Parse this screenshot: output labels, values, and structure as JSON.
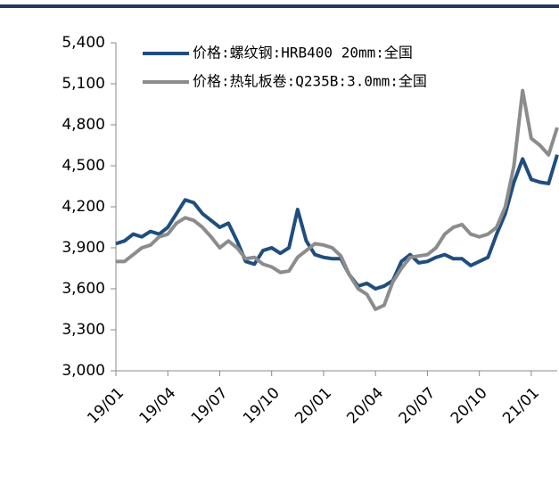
{
  "chart_data": {
    "type": "line",
    "categories": [
      "19/01",
      null,
      null,
      null,
      null,
      null,
      "19/04",
      null,
      null,
      null,
      null,
      null,
      "19/07",
      null,
      null,
      null,
      null,
      null,
      "19/10",
      null,
      null,
      null,
      null,
      null,
      "20/01",
      null,
      null,
      null,
      null,
      null,
      "20/04",
      null,
      null,
      null,
      null,
      null,
      "20/07",
      null,
      null,
      null,
      null,
      null,
      "20/10",
      null,
      null,
      null,
      null,
      null,
      "21/01",
      null,
      null,
      null
    ],
    "series": [
      {
        "name": "价格:螺纹钢:HRB400 20mm:全国",
        "color": "#1f4e7e",
        "values": [
          3930,
          3950,
          4000,
          3980,
          4020,
          4000,
          4050,
          4150,
          4250,
          4230,
          4150,
          4100,
          4050,
          4080,
          3950,
          3800,
          3780,
          3880,
          3900,
          3860,
          3900,
          4180,
          3950,
          3850,
          3830,
          3820,
          3820,
          3700,
          3620,
          3640,
          3600,
          3620,
          3660,
          3800,
          3850,
          3790,
          3800,
          3830,
          3850,
          3820,
          3820,
          3770,
          3800,
          3830,
          4000,
          4150,
          4380,
          4550,
          4400,
          4380,
          4370,
          4580
        ]
      },
      {
        "name": "价格:热轧板卷:Q235B:3.0mm:全国",
        "color": "#8c8c8c",
        "values": [
          3800,
          3800,
          3850,
          3900,
          3920,
          3980,
          4000,
          4080,
          4120,
          4100,
          4050,
          3980,
          3900,
          3950,
          3900,
          3820,
          3830,
          3780,
          3760,
          3720,
          3730,
          3830,
          3880,
          3930,
          3920,
          3900,
          3840,
          3700,
          3600,
          3560,
          3450,
          3480,
          3650,
          3750,
          3830,
          3840,
          3850,
          3900,
          4000,
          4050,
          4070,
          4000,
          3980,
          4000,
          4050,
          4200,
          4500,
          5050,
          4700,
          4650,
          4580,
          4780
        ]
      }
    ],
    "ylim": [
      3000,
      5400
    ],
    "yticks": [
      {
        "value": 3000,
        "label": "3,000"
      },
      {
        "value": 3300,
        "label": "3,300"
      },
      {
        "value": 3600,
        "label": "3,600"
      },
      {
        "value": 3900,
        "label": "3,900"
      },
      {
        "value": 4200,
        "label": "4,200"
      },
      {
        "value": 4500,
        "label": "4,500"
      },
      {
        "value": 4800,
        "label": "4,800"
      },
      {
        "value": 5100,
        "label": "5,100"
      },
      {
        "value": 5400,
        "label": "5,400"
      }
    ],
    "legend": "upper-left"
  }
}
